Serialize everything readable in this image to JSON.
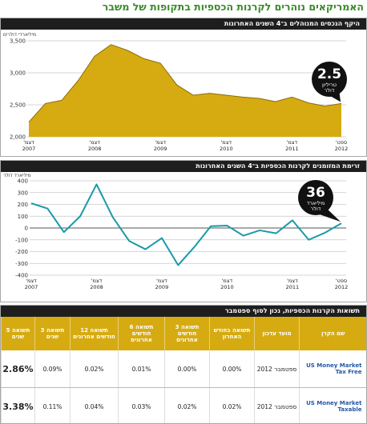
{
  "title": "האמריקאים נוהרים לקרנות הכספיות בתקופות של משבר",
  "chart_data": [
    {
      "type": "area",
      "title": "היקף הנכסים המנוהלים ב־4 השנים האחרונות",
      "y_label": "מיליארדי דולרים",
      "categories": [
        "דצמ' 2007",
        null,
        null,
        null,
        "דצמ' 2008",
        null,
        null,
        null,
        "דצמ' 2009",
        null,
        null,
        null,
        "דצמ' 2010",
        null,
        null,
        null,
        "דצמ' 2011",
        null,
        null,
        "ספט' 2012"
      ],
      "values": [
        2230,
        2520,
        2570,
        2880,
        3260,
        3440,
        3350,
        3220,
        3150,
        2810,
        2650,
        2680,
        2650,
        2620,
        2600,
        2550,
        2620,
        2530,
        2480,
        2520
      ],
      "color": "#d6ab12",
      "ylim": [
        2000,
        3650
      ],
      "yticks": [
        {
          "value": 2000,
          "label": "2,000"
        },
        {
          "value": 2500,
          "label": "2,500"
        },
        {
          "value": 3000,
          "label": "3,000"
        },
        {
          "value": 3500,
          "label": "3,500"
        }
      ],
      "grid": true,
      "annotation": [
        "2.5",
        "טריליון",
        "דולר"
      ]
    },
    {
      "type": "line",
      "title": "זרימת המזומנים לקרנות הכספיות ב־4 השנים האחרונות",
      "y_label": "מיליארד דולר",
      "categories": [
        "דצמ' 2007",
        null,
        null,
        null,
        "דצמ' 2008",
        null,
        null,
        null,
        "דצמ' 2009",
        null,
        null,
        null,
        "דצמ' 2010",
        null,
        null,
        null,
        "דצמ' 2011",
        null,
        null,
        "ספט' 2012"
      ],
      "values": [
        210,
        165,
        -35,
        100,
        370,
        90,
        -110,
        -180,
        -85,
        -315,
        -160,
        15,
        20,
        -65,
        -20,
        -45,
        65,
        -100,
        -40,
        40
      ],
      "color": "#1a9aa8",
      "ylim": [
        -400,
        400
      ],
      "yticks": [
        -400,
        -300,
        -200,
        -100,
        0,
        100,
        200,
        300,
        400
      ],
      "grid": true,
      "annotation": [
        "36",
        "מיליארד",
        "דולר"
      ]
    }
  ],
  "table": {
    "title": "תשואות הקרנות הכספיות, נכון לסוף ספטמבר",
    "columns": [
      "שם הקרן",
      "מועד עדכון",
      "תשואה בחודש האחרון",
      "תשואה 3 חודשים אחרונים",
      "תשואה 6 חודשים אחרונים",
      "תשואה 12 חודשים אחרונים",
      "תשואה 3 שנים",
      "תשואה 5 שנים"
    ],
    "rows": [
      [
        "US Money Market Tax Free",
        "ספטמבר 2012",
        "0.00%",
        "0.00%",
        "0.01%",
        "0.02%",
        "0.09%",
        "2.86%"
      ],
      [
        "US Money Market Taxable",
        "ספטמבר 2012",
        "0.02%",
        "0.02%",
        "0.03%",
        "0.04%",
        "0.11%",
        "3.38%"
      ]
    ]
  }
}
